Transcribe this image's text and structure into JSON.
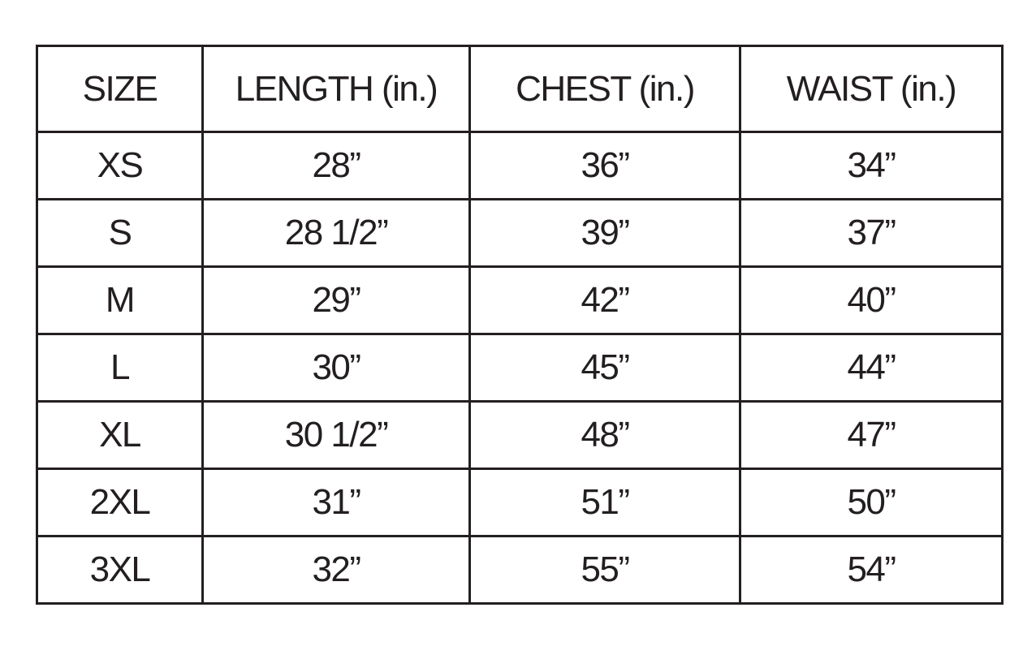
{
  "size_chart": {
    "headers": [
      "SIZE",
      "LENGTH (in.)",
      "CHEST (in.)",
      "WAIST (in.)"
    ],
    "rows": [
      [
        "XS",
        "28”",
        "36”",
        "34”"
      ],
      [
        "S",
        "28 1/2”",
        "39”",
        "37”"
      ],
      [
        "M",
        "29”",
        "42”",
        "40”"
      ],
      [
        "L",
        "30”",
        "45”",
        "44”"
      ],
      [
        "XL",
        "30 1/2”",
        "48”",
        "47”"
      ],
      [
        "2XL",
        "31”",
        "51”",
        "50”"
      ],
      [
        "3XL",
        "32”",
        "55”",
        "54”"
      ]
    ]
  }
}
